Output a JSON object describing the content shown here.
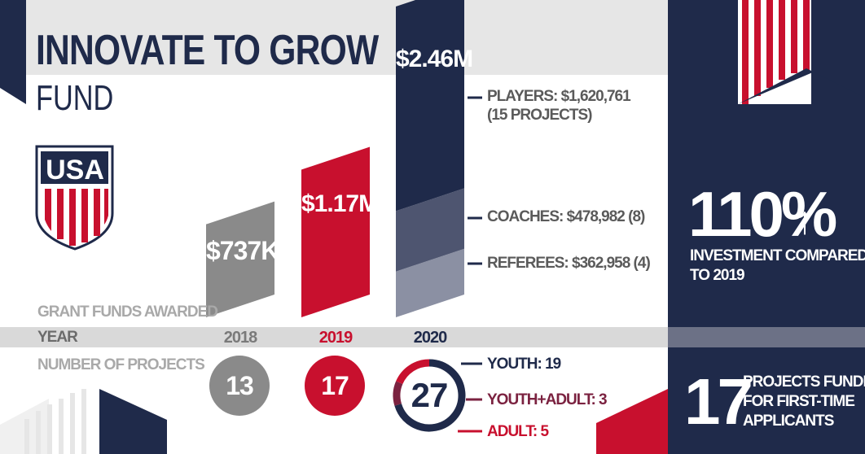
{
  "title": {
    "main": "INNOVATE TO GROW",
    "sub": "FUND"
  },
  "logo": {
    "text": "USA",
    "name": "us-soccer-crest"
  },
  "colors": {
    "navy": "#1f2a4a",
    "red": "#c8102e",
    "gray": "#8a8a8a",
    "lightgray": "#e6e6e6",
    "midgray": "#8f8f8f"
  },
  "labels": {
    "grant_funds": "GRANT FUNDS AWARDED",
    "year": "YEAR",
    "projects": "NUMBER OF PROJECTS"
  },
  "chart_data": {
    "type": "bar",
    "categories": [
      "2018",
      "2019",
      "2020"
    ],
    "values": [
      737000,
      1170000,
      2462701
    ],
    "value_labels": [
      "$737K",
      "$1.17M",
      "$2.46M"
    ],
    "colors": [
      "#8a8a8a",
      "#c8102e",
      "#1f2a4a"
    ],
    "breakdown_2020": [
      {
        "name": "PLAYERS: $1,620,761",
        "detail": "(15 PROJECTS)",
        "value": 1620761,
        "color": "#1f2a4a"
      },
      {
        "name": "COACHES: $478,982 (8)",
        "value": 478982,
        "color": "#4e5570"
      },
      {
        "name": "REFEREES: $362,958 (4)",
        "value": 362958,
        "color": "#8b90a3"
      }
    ],
    "projects": [
      13,
      17,
      27
    ],
    "projects_2020": [
      {
        "name": "YOUTH: 19",
        "value": 19,
        "color": "#1f2a4a"
      },
      {
        "name": "YOUTH+ADULT: 3",
        "value": 3,
        "color": "#7b2240"
      },
      {
        "name": "ADULT: 5",
        "value": 5,
        "color": "#c8102e"
      }
    ]
  },
  "stats": {
    "growth_value": "110%",
    "growth_arrow": "↑",
    "growth_line1": "INVESTMENT COMPARED",
    "growth_line2": "TO 2019",
    "first_time_value": "17",
    "first_time_line1": "PROJECTS FUNDED",
    "first_time_line2": "FOR FIRST-TIME",
    "first_time_line3": "APPLICANTS"
  }
}
